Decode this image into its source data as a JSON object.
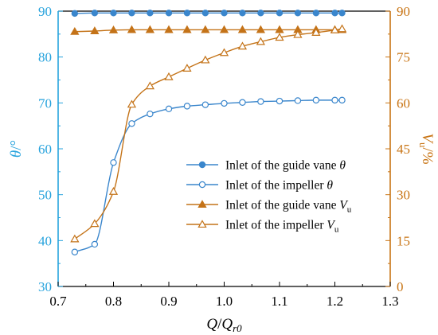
{
  "chart_data": {
    "type": "line",
    "xlabel": {
      "pre": "Q",
      "mid": "/Q",
      "sub": "r0"
    },
    "ylabel_left": {
      "sym": "θ",
      "unit": "/°"
    },
    "ylabel_right": {
      "sym": "V",
      "sub": "u",
      "unit": "/%"
    },
    "xlim": [
      0.7,
      1.3
    ],
    "ylim_left": [
      30,
      90
    ],
    "ylim_right": [
      0,
      90
    ],
    "x_ticks": [
      "0.7",
      "0.8",
      "0.9",
      "1.0",
      "1.1",
      "1.2",
      "1.3"
    ],
    "y_ticks_left": [
      "30",
      "40",
      "50",
      "60",
      "70",
      "80",
      "90"
    ],
    "y_ticks_right": [
      "0",
      "15",
      "30",
      "45",
      "60",
      "75",
      "90"
    ],
    "colors": {
      "left_axis": "#27a3dd",
      "right_axis": "#c87414",
      "blue_series": "#3a86cc",
      "orange_series": "#c47318"
    },
    "grid": false,
    "legend_placement": "center-right",
    "series": [
      {
        "name": "Inlet of the guide vane θ",
        "legend": {
          "text": "Inlet of the guide vane ",
          "sym": "θ",
          "sub": ""
        },
        "axis": "left",
        "marker": "circle-filled",
        "color": "#3a86cc",
        "x": [
          0.73,
          0.766,
          0.8,
          0.833,
          0.866,
          0.9,
          0.933,
          0.966,
          1.0,
          1.033,
          1.066,
          1.1,
          1.133,
          1.166,
          1.2,
          1.213
        ],
        "values": [
          89.5,
          89.6,
          89.6,
          89.6,
          89.6,
          89.6,
          89.6,
          89.6,
          89.6,
          89.6,
          89.6,
          89.6,
          89.6,
          89.6,
          89.6,
          89.6
        ]
      },
      {
        "name": "Inlet of the impeller θ",
        "legend": {
          "text": "Inlet of the impeller ",
          "sym": "θ",
          "sub": ""
        },
        "axis": "left",
        "marker": "circle-open",
        "color": "#3a86cc",
        "x": [
          0.73,
          0.766,
          0.8,
          0.833,
          0.866,
          0.9,
          0.933,
          0.966,
          1.0,
          1.033,
          1.066,
          1.1,
          1.133,
          1.166,
          1.2,
          1.213
        ],
        "values": [
          37.5,
          39.2,
          57.0,
          65.5,
          67.6,
          68.7,
          69.3,
          69.6,
          69.9,
          70.1,
          70.3,
          70.4,
          70.5,
          70.6,
          70.6,
          70.6
        ]
      },
      {
        "name": "Inlet of the guide vane Vu",
        "legend": {
          "text": "Inlet of the guide vane ",
          "sym": "V",
          "sub": "u"
        },
        "axis": "right",
        "marker": "triangle-filled",
        "color": "#c47318",
        "x": [
          0.73,
          0.766,
          0.8,
          0.833,
          0.866,
          0.9,
          0.933,
          0.966,
          1.0,
          1.033,
          1.066,
          1.1,
          1.133,
          1.166,
          1.2,
          1.213
        ],
        "values": [
          83.3,
          83.5,
          83.8,
          83.9,
          83.9,
          83.9,
          83.9,
          83.9,
          83.9,
          83.9,
          83.9,
          83.9,
          83.9,
          83.9,
          83.9,
          83.9
        ]
      },
      {
        "name": "Inlet of the impeller Vu",
        "legend": {
          "text": "Inlet of the impeller ",
          "sym": "V",
          "sub": "u"
        },
        "axis": "right",
        "marker": "triangle-open",
        "color": "#c47318",
        "x": [
          0.73,
          0.766,
          0.8,
          0.833,
          0.866,
          0.9,
          0.933,
          0.966,
          1.0,
          1.033,
          1.066,
          1.1,
          1.133,
          1.166,
          1.2,
          1.213
        ],
        "values": [
          15.5,
          20.5,
          31.0,
          59.5,
          65.5,
          68.5,
          71.3,
          74.0,
          76.4,
          78.5,
          80.0,
          81.4,
          82.3,
          83.0,
          83.8,
          84.2
        ]
      }
    ]
  }
}
